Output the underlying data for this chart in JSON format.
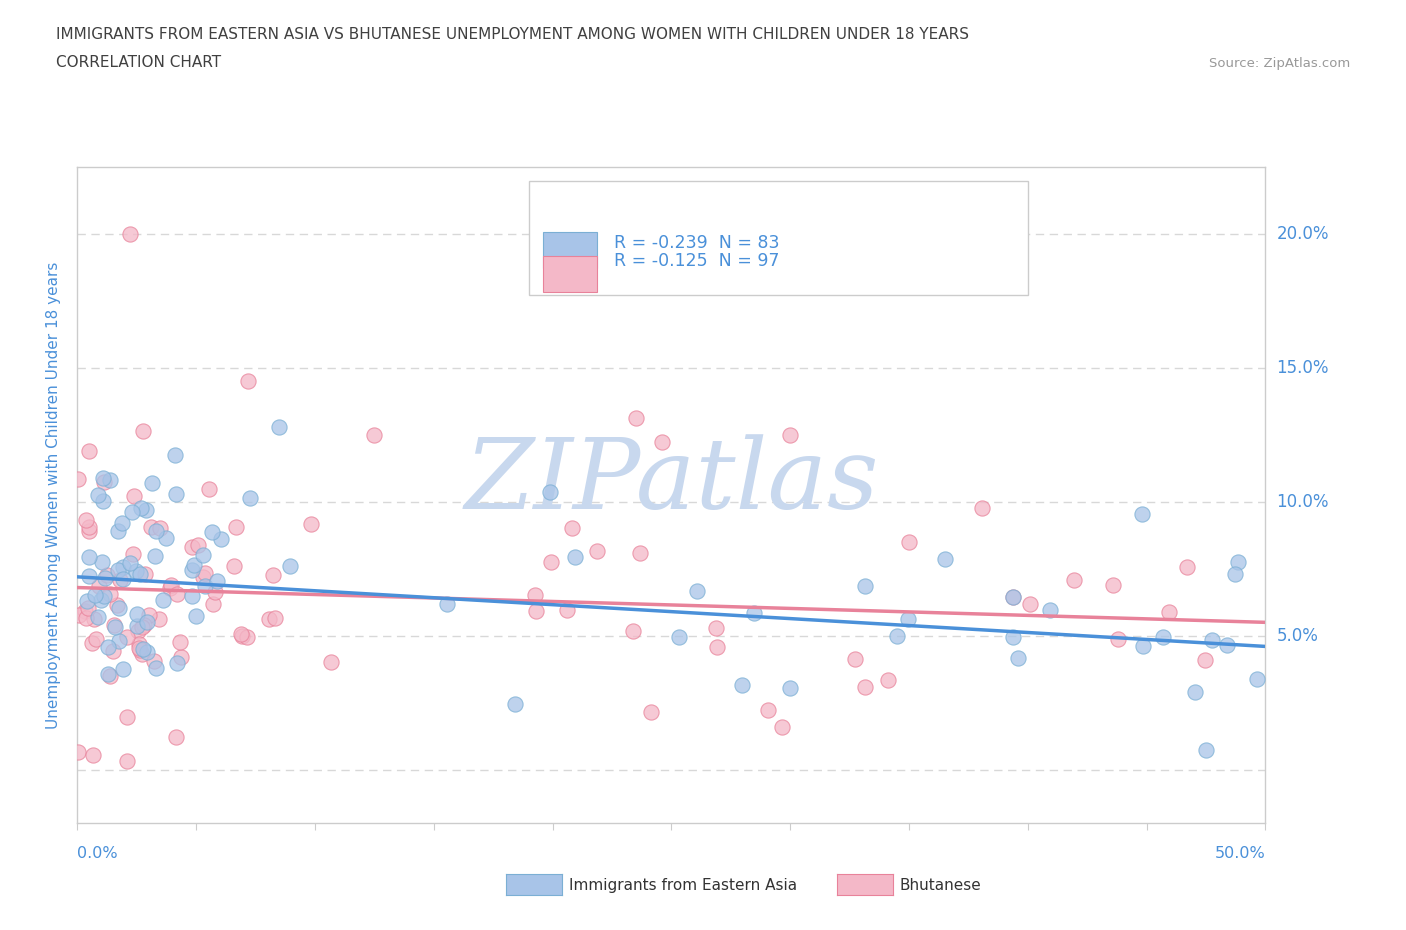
{
  "title_line1": "IMMIGRANTS FROM EASTERN ASIA VS BHUTANESE UNEMPLOYMENT AMONG WOMEN WITH CHILDREN UNDER 18 YEARS",
  "title_line2": "CORRELATION CHART",
  "source": "Source: ZipAtlas.com",
  "ylabel": "Unemployment Among Women with Children Under 18 years",
  "y_tick_vals": [
    0.0,
    0.05,
    0.1,
    0.15,
    0.2
  ],
  "y_tick_labels": [
    "",
    "5.0%",
    "10.0%",
    "15.0%",
    "20.0%"
  ],
  "xlim": [
    0.0,
    0.5
  ],
  "ylim": [
    -0.02,
    0.225
  ],
  "blue_line_start_y": 0.072,
  "blue_line_end_y": 0.046,
  "pink_line_start_y": 0.068,
  "pink_line_end_y": 0.055,
  "blue_line_color": "#4a90d9",
  "pink_line_color": "#e8829a",
  "scatter_blue_color": "#a8c4e8",
  "scatter_pink_color": "#f4b8c8",
  "scatter_blue_edge": "#7bafd4",
  "scatter_pink_edge": "#e8829a",
  "watermark": "ZIPatlas",
  "watermark_color": "#c8d8ee",
  "grid_color": "#d8d8d8",
  "bg_color": "#ffffff",
  "title_color": "#404040",
  "axis_label_color": "#4a90d9",
  "tick_label_color": "#4a90d9",
  "legend_label1": "R = -0.239  N = 83",
  "legend_label2": "R = -0.125  N = 97",
  "bottom_label1": "Immigrants from Eastern Asia",
  "bottom_label2": "Bhutanese"
}
